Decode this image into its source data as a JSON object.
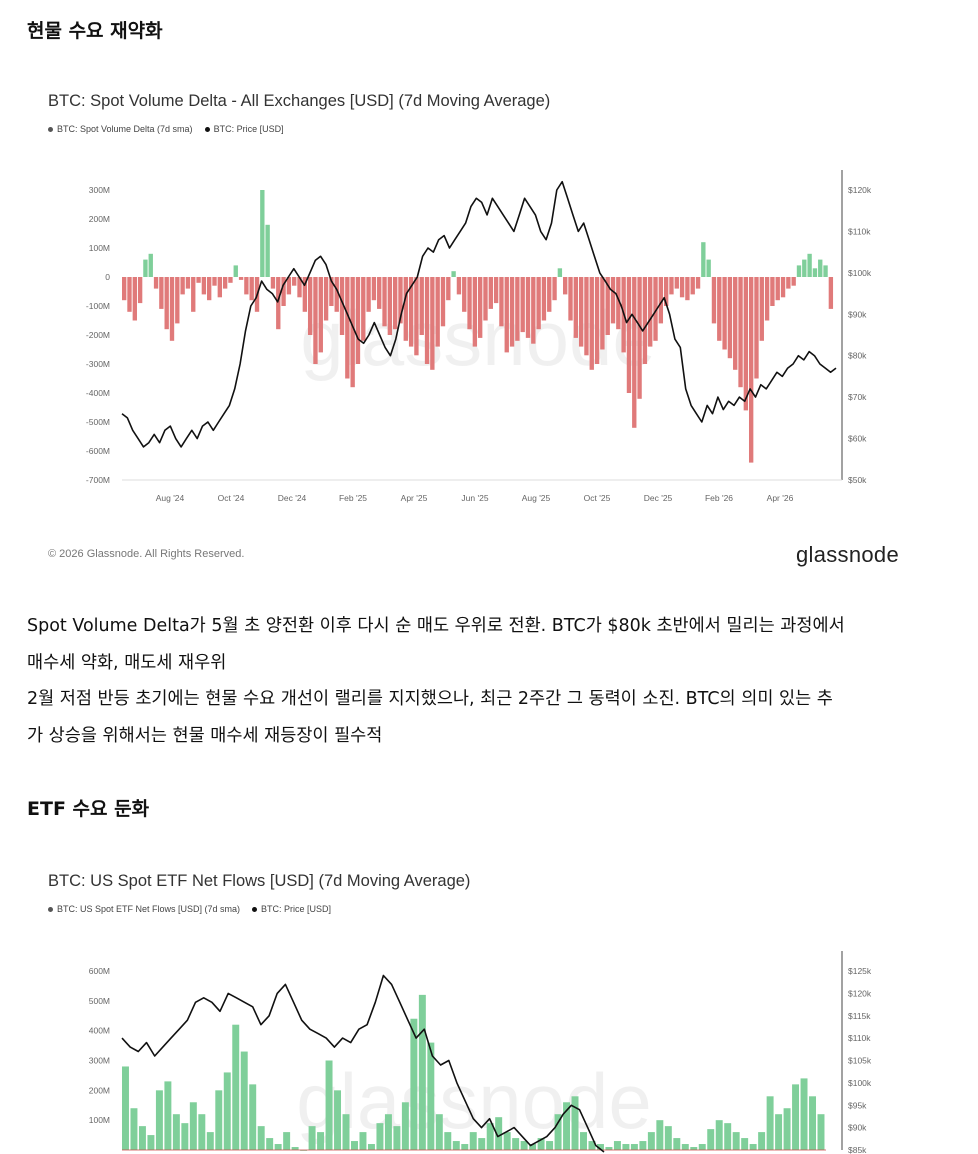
{
  "sections": [
    {
      "heading": "현물 수요 재약화"
    },
    {
      "heading": "ETF 수요 둔화"
    }
  ],
  "paragraph": {
    "lines": [
      "Spot Volume Delta가 5월 초 양전환 이후 다시 순 매도 우위로 전환. BTC가 $80k 초반에서 밀리는 과정에서",
      "매수세 약화, 매도세 재우위",
      "2월 저점 반등 초기에는 현물 수요 개선이 랠리를 지지했으나, 최근 2주간 그 동력이 소진. BTC의 의미 있는 추",
      "가 상승을 위해서는 현물 매수세 재등장이 필수적"
    ]
  },
  "footer": {
    "copyright": "© 2026 Glassnode. All Rights Reserved.",
    "brand": "glassnode",
    "watermark": "glassnode"
  },
  "colors": {
    "positive": "#7fcf9a",
    "negative": "#e07a7a",
    "price": "#111111",
    "axis_text": "#666666"
  },
  "chart_data": [
    {
      "type": "bar",
      "title": "BTC: Spot Volume Delta - All Exchanges [USD] (7d Moving Average)",
      "legend": [
        "BTC: Spot Volume Delta (7d sma)",
        "BTC: Price [USD]"
      ],
      "x_ticks": [
        "Aug '24",
        "Oct '24",
        "Dec '24",
        "Feb '25",
        "Apr '25",
        "Jun '25",
        "Aug '25",
        "Oct '25",
        "Dec '25",
        "Feb '26",
        "Apr '26"
      ],
      "y_left_ticks": [
        "300M",
        "200M",
        "100M",
        "0",
        "-100M",
        "-200M",
        "-300M",
        "-400M",
        "-500M",
        "-600M",
        "-700M"
      ],
      "y_left_range": [
        -700,
        300
      ],
      "y_right_ticks": [
        "$120k",
        "$110k",
        "$100k",
        "$90k",
        "$80k",
        "$70k",
        "$60k",
        "$50k"
      ],
      "y_right_range": [
        50,
        120
      ],
      "series": [
        {
          "name": "BTC: Spot Volume Delta (7d sma)",
          "unit": "M USD",
          "values": [
            -80,
            -120,
            -150,
            -90,
            60,
            80,
            -40,
            -110,
            -180,
            -220,
            -160,
            -60,
            -40,
            -120,
            -20,
            -60,
            -80,
            -30,
            -70,
            -40,
            -20,
            40,
            -10,
            -60,
            -80,
            -120,
            300,
            180,
            -40,
            -180,
            -100,
            -60,
            -30,
            -70,
            -120,
            -200,
            -300,
            -260,
            -150,
            -100,
            -120,
            -200,
            -350,
            -380,
            -300,
            -220,
            -120,
            -80,
            -110,
            -170,
            -200,
            -180,
            -160,
            -220,
            -240,
            -270,
            -200,
            -300,
            -320,
            -240,
            -170,
            -80,
            20,
            -60,
            -120,
            -180,
            -240,
            -210,
            -150,
            -110,
            -90,
            -170,
            -260,
            -240,
            -220,
            -190,
            -210,
            -230,
            -180,
            -150,
            -120,
            -80,
            30,
            -60,
            -150,
            -210,
            -240,
            -270,
            -320,
            -300,
            -250,
            -200,
            -160,
            -180,
            -260,
            -400,
            -520,
            -420,
            -300,
            -240,
            -220,
            -160,
            -100,
            -60,
            -40,
            -70,
            -80,
            -60,
            -40,
            120,
            60,
            -160,
            -220,
            -250,
            -280,
            -320,
            -380,
            -460,
            -640,
            -350,
            -220,
            -150,
            -100,
            -80,
            -70,
            -40,
            -30,
            40,
            60,
            80,
            30,
            60,
            40,
            -110
          ]
        },
        {
          "name": "BTC: Price [USD]",
          "unit": "k USD",
          "values": [
            66,
            65,
            62,
            60,
            58,
            59,
            61,
            59,
            62,
            63,
            60,
            58,
            60,
            62,
            60,
            63,
            64,
            62,
            64,
            66,
            68,
            72,
            78,
            86,
            92,
            94,
            98,
            96,
            95,
            93,
            97,
            99,
            101,
            99,
            97,
            100,
            103,
            104,
            102,
            98,
            96,
            93,
            90,
            87,
            84,
            83,
            85,
            88,
            85,
            82,
            80,
            84,
            90,
            95,
            97,
            99,
            104,
            106,
            105,
            108,
            109,
            106,
            108,
            110,
            112,
            116,
            118,
            117,
            114,
            118,
            116,
            114,
            112,
            110,
            114,
            118,
            116,
            114,
            110,
            108,
            112,
            120,
            122,
            118,
            114,
            110,
            112,
            108,
            104,
            100,
            98,
            96,
            95,
            92,
            88,
            90,
            88,
            86,
            88,
            90,
            92,
            94,
            90,
            84,
            82,
            72,
            68,
            66,
            64,
            68,
            66,
            70,
            67,
            69,
            68,
            70,
            69,
            72,
            70,
            73,
            72,
            74,
            76,
            75,
            77,
            78,
            80,
            79,
            81,
            80,
            78,
            77,
            76,
            77
          ]
        }
      ]
    },
    {
      "type": "bar",
      "title": "BTC: US Spot ETF Net Flows [USD] (7d Moving Average)",
      "legend": [
        "BTC: US Spot ETF Net Flows [USD] (7d sma)",
        "BTC: Price [USD]"
      ],
      "y_left_ticks": [
        "600M",
        "500M",
        "400M",
        "300M",
        "200M",
        "100M"
      ],
      "y_left_range": [
        0,
        600
      ],
      "y_right_ticks": [
        "$125k",
        "$120k",
        "$115k",
        "$110k",
        "$105k",
        "$100k",
        "$95k",
        "$90k",
        "$85k"
      ],
      "y_right_range": [
        85,
        125
      ],
      "series": [
        {
          "name": "BTC: US Spot ETF Net Flows [USD] (7d sma)",
          "unit": "M USD",
          "values": [
            280,
            140,
            80,
            50,
            200,
            230,
            120,
            90,
            160,
            120,
            60,
            200,
            260,
            420,
            330,
            220,
            80,
            40,
            20,
            60,
            10,
            0,
            80,
            60,
            300,
            200,
            120,
            30,
            60,
            20,
            90,
            120,
            80,
            160,
            440,
            520,
            360,
            120,
            60,
            30,
            20,
            60,
            40,
            90,
            110,
            60,
            40,
            30,
            20,
            40,
            30,
            120,
            160,
            180,
            60,
            30,
            20,
            10,
            30,
            20,
            20,
            30,
            60,
            100,
            80,
            40,
            20,
            10,
            20,
            70,
            100,
            90,
            60,
            40,
            20,
            60,
            180,
            120,
            140,
            220,
            240,
            180,
            120
          ]
        },
        {
          "name": "BTC: Price [USD]",
          "unit": "k USD",
          "values": [
            110,
            108,
            107,
            109,
            106,
            108,
            110,
            112,
            114,
            118,
            119,
            118,
            116,
            120,
            119,
            118,
            117,
            113,
            115,
            120,
            122,
            118,
            114,
            112,
            111,
            110,
            108,
            110,
            109,
            112,
            113,
            118,
            124,
            122,
            118,
            114,
            110,
            112,
            106,
            104,
            105,
            100,
            96,
            92,
            90,
            92,
            88,
            89,
            90,
            88,
            86,
            87,
            88,
            90,
            93,
            95,
            94,
            90,
            86,
            84
          ]
        }
      ]
    }
  ]
}
